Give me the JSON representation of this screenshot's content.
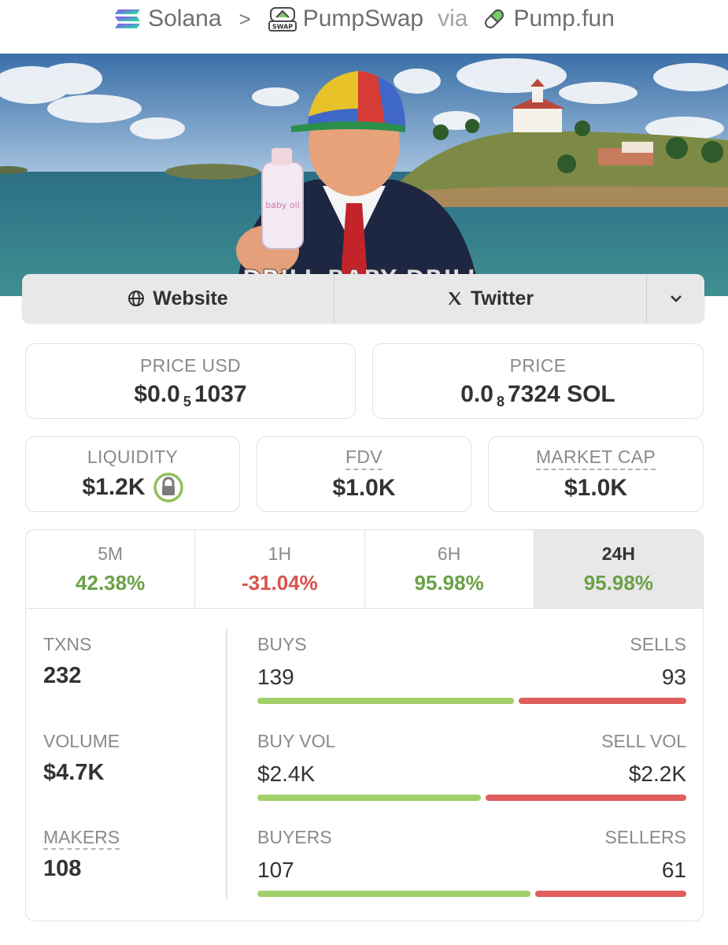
{
  "breadcrumb": {
    "chain": "Solana",
    "separator": ">",
    "dex": "PumpSwap",
    "dex_badge": "SWAP",
    "via": "via",
    "launchpad": "Pump.fun"
  },
  "banner": {
    "caption": "DRILL BABY DRILL",
    "bottle_label": "baby oil"
  },
  "links": {
    "website": "Website",
    "twitter": "Twitter",
    "more_icon": "chevron-down-icon"
  },
  "price_usd": {
    "label": "PRICE USD",
    "prefix": "$0.0",
    "zeros": "5",
    "digits": "1037"
  },
  "price_native": {
    "label": "PRICE",
    "prefix": "0.0",
    "zeros": "8",
    "digits": "7324",
    "unit": "SOL"
  },
  "liquidity": {
    "label": "LIQUIDITY",
    "value": "$1.2K"
  },
  "fdv": {
    "label": "FDV",
    "value": "$1.0K"
  },
  "market_cap": {
    "label": "MARKET CAP",
    "value": "$1.0K"
  },
  "timeframes": [
    {
      "label": "5M",
      "change": "42.38%"
    },
    {
      "label": "1H",
      "change": "-31.04%"
    },
    {
      "label": "6H",
      "change": "95.98%"
    },
    {
      "label": "24H",
      "change": "95.98%"
    }
  ],
  "active_timeframe": "24H",
  "stats": {
    "txns": {
      "label": "TXNS",
      "value": "232"
    },
    "volume": {
      "label": "VOLUME",
      "value": "$4.7K"
    },
    "makers": {
      "label": "MAKERS",
      "value": "108"
    },
    "buys": {
      "label": "BUYS",
      "value": "139"
    },
    "sells": {
      "label": "SELLS",
      "value": "93"
    },
    "buy_vol": {
      "label": "BUY VOL",
      "value": "$2.4K"
    },
    "sell_vol": {
      "label": "SELL VOL",
      "value": "$2.2K"
    },
    "buyers": {
      "label": "BUYERS",
      "value": "107"
    },
    "sellers": {
      "label": "SELLERS",
      "value": "61"
    }
  },
  "bar_ratios": {
    "txns_buy": 0.599,
    "volume_buy": 0.522,
    "makers_buy": 0.637
  },
  "colors": {
    "positive": "#6aa146",
    "negative": "#d9534f",
    "buy_bar": "#a3cf6b",
    "sell_bar": "#e05e5e"
  }
}
